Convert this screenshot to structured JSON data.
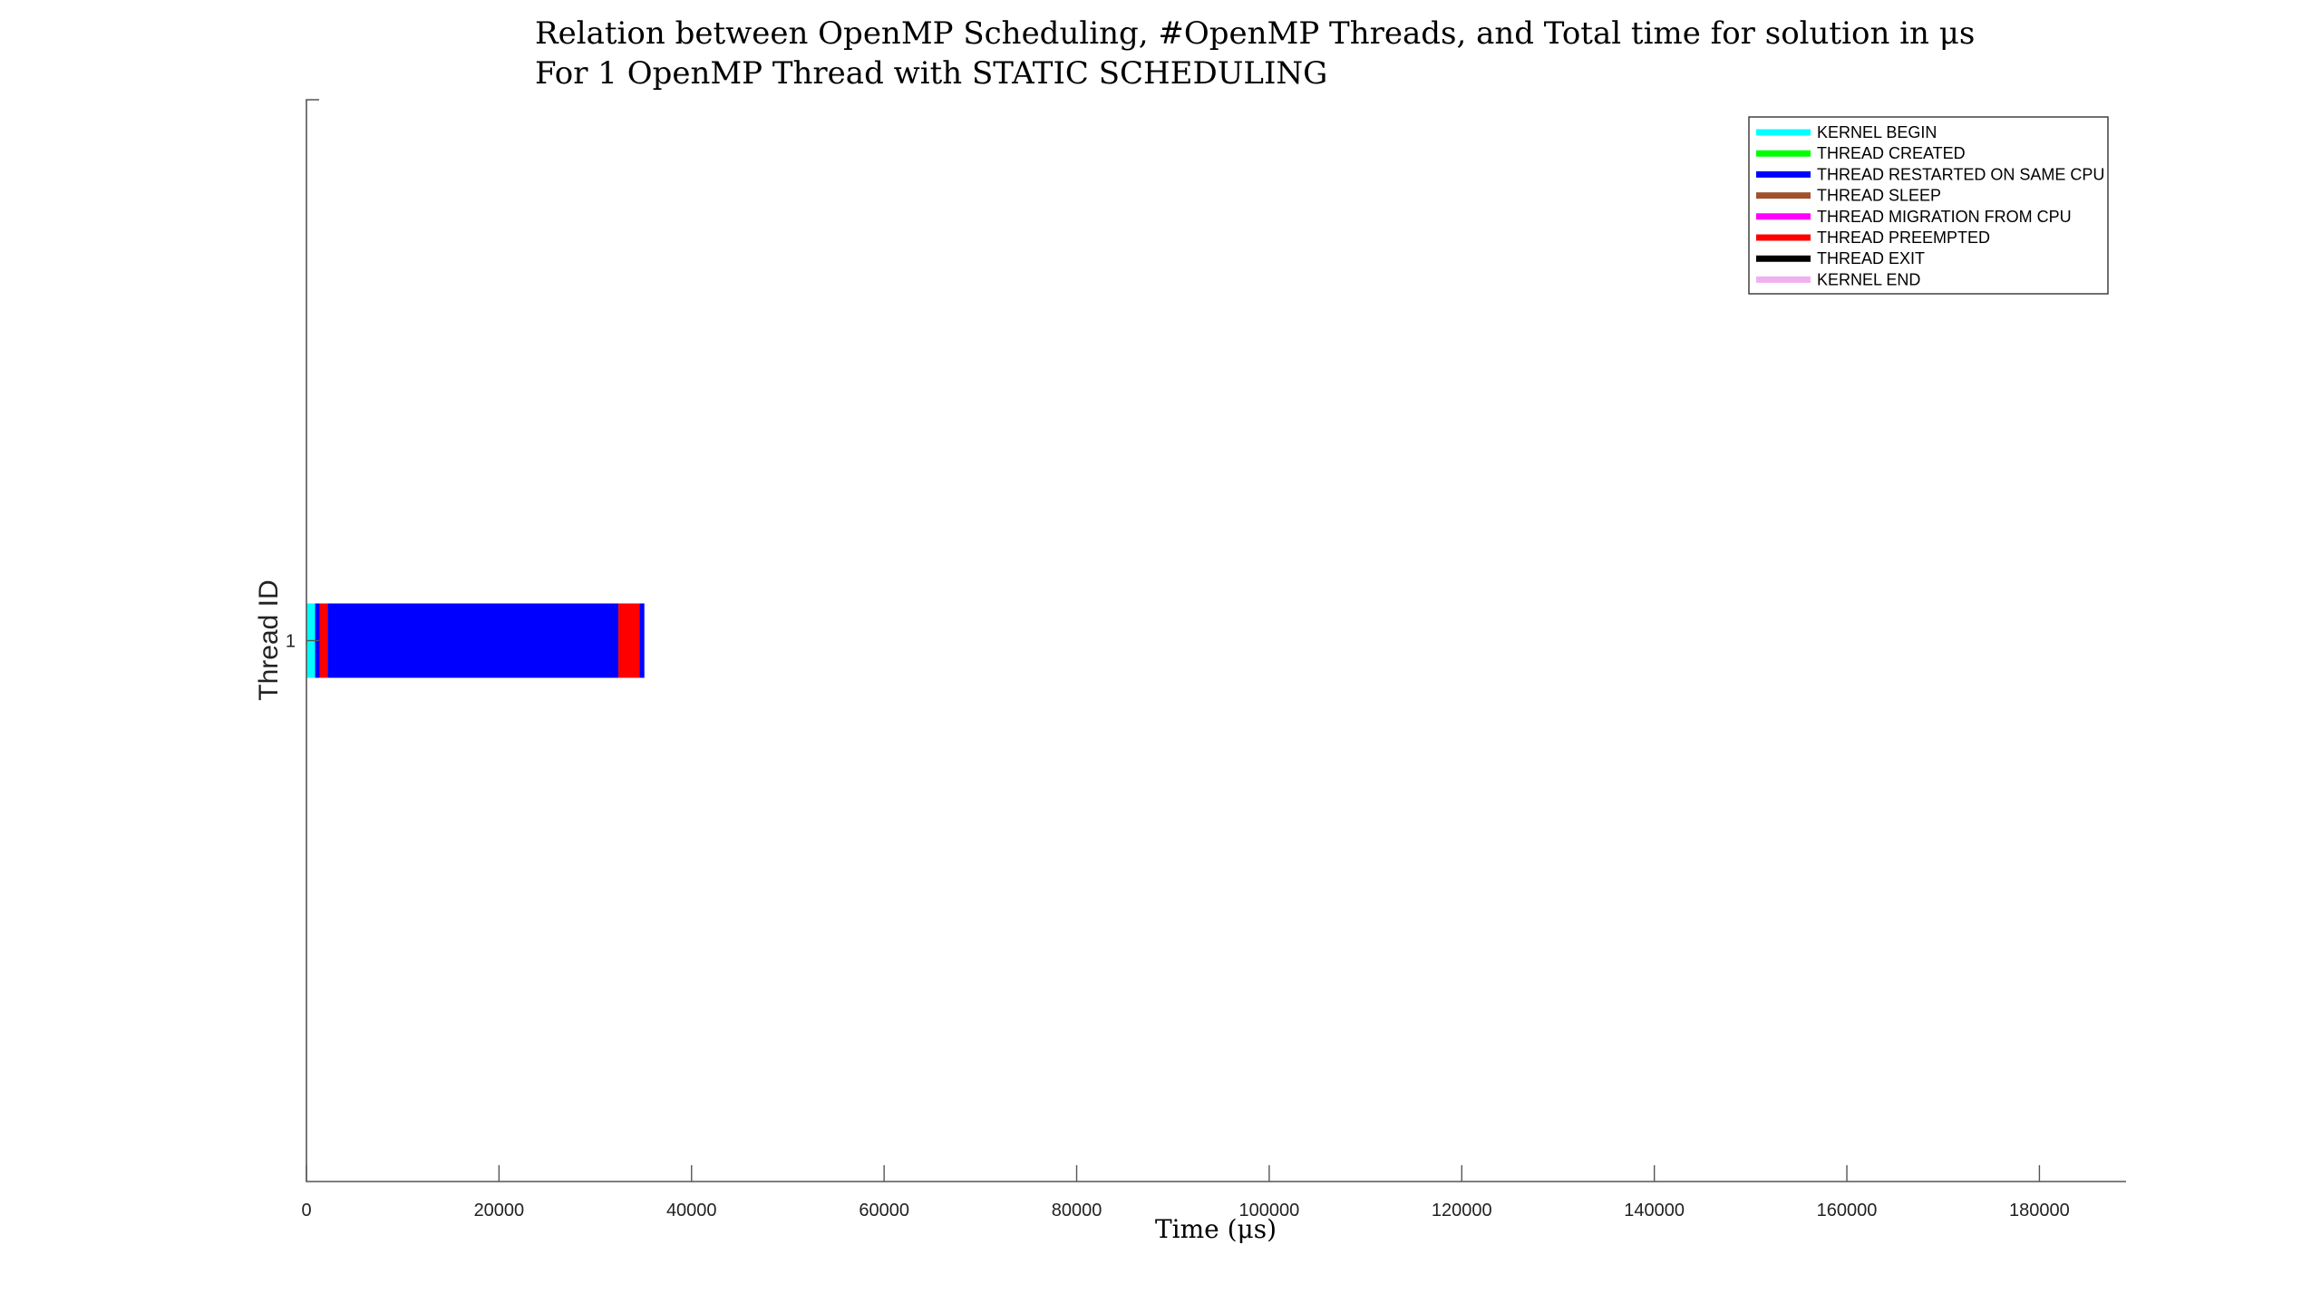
{
  "chart_data": {
    "type": "bar",
    "orientation": "horizontal-stacked-timeline",
    "title": "Relation between OpenMP Scheduling, #OpenMP Threads, and Total time for solution in μs",
    "subtitle": "For 1 OpenMP Thread with STATIC SCHEDULING",
    "xlabel": "Time (μs)",
    "ylabel": "Thread ID",
    "xlim": [
      0,
      189000
    ],
    "ylim": [
      0.36,
      1.64
    ],
    "xticks": [
      0,
      20000,
      40000,
      60000,
      80000,
      100000,
      120000,
      140000,
      160000,
      180000
    ],
    "xtick_labels": [
      "0",
      "20000",
      "40000",
      "60000",
      "80000",
      "100000",
      "120000",
      "140000",
      "160000",
      "180000"
    ],
    "yticks": [
      1
    ],
    "ytick_labels": [
      "1"
    ],
    "grid": false,
    "legend_position": "top-right",
    "legend": [
      {
        "name": "KERNEL BEGIN",
        "color": "#00FFFF"
      },
      {
        "name": "THREAD CREATED",
        "color": "#00FF00"
      },
      {
        "name": "THREAD RESTARTED ON SAME CPU",
        "color": "#0000FF"
      },
      {
        "name": "THREAD SLEEP",
        "color": "#A0522D"
      },
      {
        "name": "THREAD MIGRATION FROM CPU",
        "color": "#FF00FF"
      },
      {
        "name": "THREAD PREEMPTED",
        "color": "#FF0000"
      },
      {
        "name": "THREAD EXIT",
        "color": "#000000"
      },
      {
        "name": "KERNEL END",
        "color": "#F0B0F0"
      }
    ],
    "bar_height": 0.088,
    "segments": [
      {
        "thread": 1,
        "state": "KERNEL BEGIN",
        "start": 0,
        "end": 900
      },
      {
        "thread": 1,
        "state": "THREAD RESTARTED ON SAME CPU",
        "start": 900,
        "end": 1400
      },
      {
        "thread": 1,
        "state": "THREAD PREEMPTED",
        "start": 1400,
        "end": 2200
      },
      {
        "thread": 1,
        "state": "THREAD RESTARTED ON SAME CPU",
        "start": 2200,
        "end": 32400
      },
      {
        "thread": 1,
        "state": "THREAD PREEMPTED",
        "start": 32400,
        "end": 34600
      },
      {
        "thread": 1,
        "state": "THREAD RESTARTED ON SAME CPU",
        "start": 34600,
        "end": 35100
      }
    ]
  }
}
